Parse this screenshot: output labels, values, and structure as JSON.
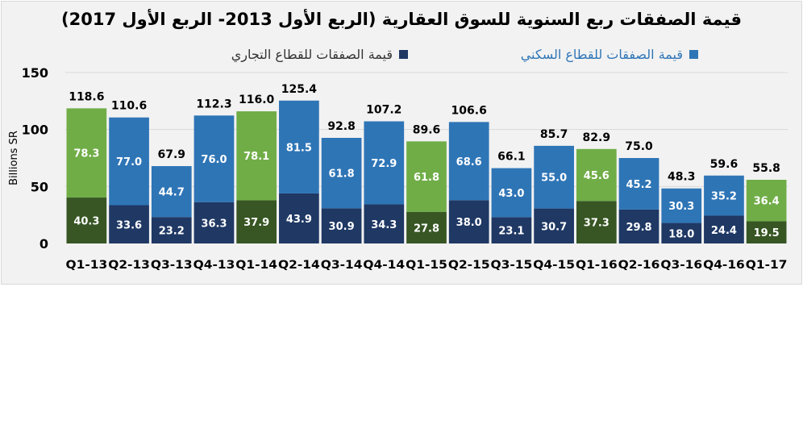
{
  "chart_data": {
    "type": "bar",
    "stacked": true,
    "title": "قيمة الصفقات ربع السنوية للسوق العقارية (الربع الأول 2013- الربع الأول 2017)",
    "ylabel": "Billions SR",
    "xlabel": "",
    "ylim": [
      0,
      150
    ],
    "yticks": [
      0,
      50,
      100,
      150
    ],
    "grid": true,
    "legend_position": "top",
    "categories": [
      "Q1-13",
      "Q2-13",
      "Q3-13",
      "Q4-13",
      "Q1-14",
      "Q2-14",
      "Q3-14",
      "Q4-14",
      "Q1-15",
      "Q2-15",
      "Q3-15",
      "Q4-15",
      "Q1-16",
      "Q2-16",
      "Q3-16",
      "Q4-16",
      "Q1-17"
    ],
    "series": [
      {
        "name": "قيمة الصفقات للقطاع التجاري",
        "color": "#1f3864",
        "q1_color": "#375623",
        "values": [
          40.3,
          33.6,
          23.2,
          36.3,
          37.9,
          43.9,
          30.9,
          34.3,
          27.8,
          38.0,
          23.1,
          30.7,
          37.3,
          29.8,
          18.0,
          24.4,
          19.5
        ]
      },
      {
        "name": "قيمة الصفقات للقطاع السكني",
        "color": "#2e75b6",
        "q1_color": "#70ad47",
        "values": [
          78.3,
          77.0,
          44.7,
          76.0,
          78.1,
          81.5,
          61.8,
          72.9,
          61.8,
          68.6,
          43.0,
          55.0,
          45.6,
          45.2,
          30.3,
          35.2,
          36.4
        ]
      }
    ],
    "totals": [
      118.6,
      110.6,
      67.9,
      112.3,
      116.0,
      125.4,
      92.8,
      107.2,
      89.6,
      106.6,
      66.1,
      85.7,
      82.9,
      75.0,
      48.3,
      59.6,
      55.8
    ]
  }
}
